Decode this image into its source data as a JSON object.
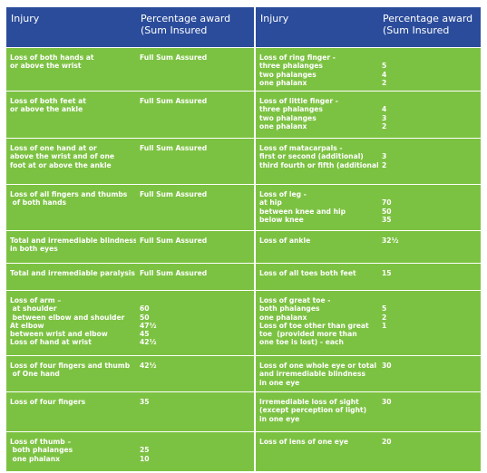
{
  "header": {
    "left": {
      "injury": "Injury",
      "award": [
        "Percentage award",
        "(Sum Insured"
      ]
    },
    "right": {
      "injury": "Injury",
      "award": [
        "Percentage award",
        "(Sum Insured"
      ]
    }
  },
  "left_rows": [
    {
      "injury": [
        "Loss of both hands at",
        "or above the wrist"
      ],
      "award": [
        "Full Sum Assured"
      ]
    },
    {
      "injury": [
        "Loss of both feet at",
        "or above the ankle"
      ],
      "award": [
        "Full Sum Assured"
      ]
    },
    {
      "injury": [
        "Loss of one hand at or",
        "above the wrist and of one",
        "foot at or above the ankle"
      ],
      "award": [
        "Full Sum Assured"
      ]
    },
    {
      "injury": [
        "Loss of all fingers and thumbs",
        " of both hands"
      ],
      "award": [
        "Full Sum Assured"
      ]
    },
    {
      "injury": [
        "Total and irremediable blindness",
        "in both eyes"
      ],
      "award": [
        "Full Sum Assured"
      ]
    },
    {
      "injury": [
        "Total and irremediable paralysis"
      ],
      "award": [
        "Full Sum Assured"
      ]
    },
    {
      "injury": [
        "Loss of arm –",
        " at shoulder",
        " between elbow and shoulder",
        "At elbow",
        "between wrist and elbow",
        "Loss of hand at wrist"
      ],
      "award": [
        "60",
        "50",
        "47½",
        "45",
        "42½"
      ]
    },
    {
      "injury": [
        "Loss of four fingers and thumb",
        " of One hand"
      ],
      "award": [
        "42½"
      ]
    },
    {
      "injury": [
        "Loss of four fingers"
      ],
      "award": [
        "35"
      ]
    },
    {
      "injury": [
        "Loss of thumb –",
        " both phalanges",
        " one phalanx"
      ],
      "award": [
        "25",
        "10"
      ]
    }
  ],
  "right_rows": [
    {
      "injury": [
        "Loss of ring finger -",
        "three phalanges",
        "two phalanges",
        "one phalanx"
      ],
      "award": [
        "5",
        "4",
        "2"
      ]
    },
    {
      "injury": [
        "Loss of little finger -",
        "three phalanges",
        "two phalanges",
        "one phalanx"
      ],
      "award": [
        "4",
        "3",
        "2"
      ]
    },
    {
      "injury": [
        "Loss of matacarpals -",
        "first or second (additional)",
        "third fourth or fifth (additional)"
      ],
      "award": [
        "3",
        "2"
      ]
    },
    {
      "injury": [
        "Loss of leg -",
        "at hip",
        "between knee and hip",
        "below knee"
      ],
      "award": [
        "70",
        "50",
        "35"
      ]
    },
    {
      "injury": [
        "Loss of ankle"
      ],
      "award": [
        "32½"
      ]
    },
    {
      "injury": [
        "Loss of all toes both feet"
      ],
      "award": [
        "15"
      ]
    },
    {
      "injury": [
        "Loss of great toe -",
        "both phalanges",
        "one phalanx",
        "Loss of toe other than great",
        "toe  (provided more than",
        "one toe is lost) - each"
      ],
      "award": [
        "5",
        "2",
        "1"
      ]
    },
    {
      "injury": [
        "Loss of one whole eye or total",
        "and irremediable blindness",
        "in one eye"
      ],
      "award": [
        "30"
      ]
    },
    {
      "injury": [
        "Irremediable loss of sight",
        "(except perception of light)",
        "in one eye"
      ],
      "award": [
        "30"
      ]
    },
    {
      "injury": [
        "Loss of lens of one eye"
      ],
      "award": [
        "20"
      ]
    }
  ]
}
